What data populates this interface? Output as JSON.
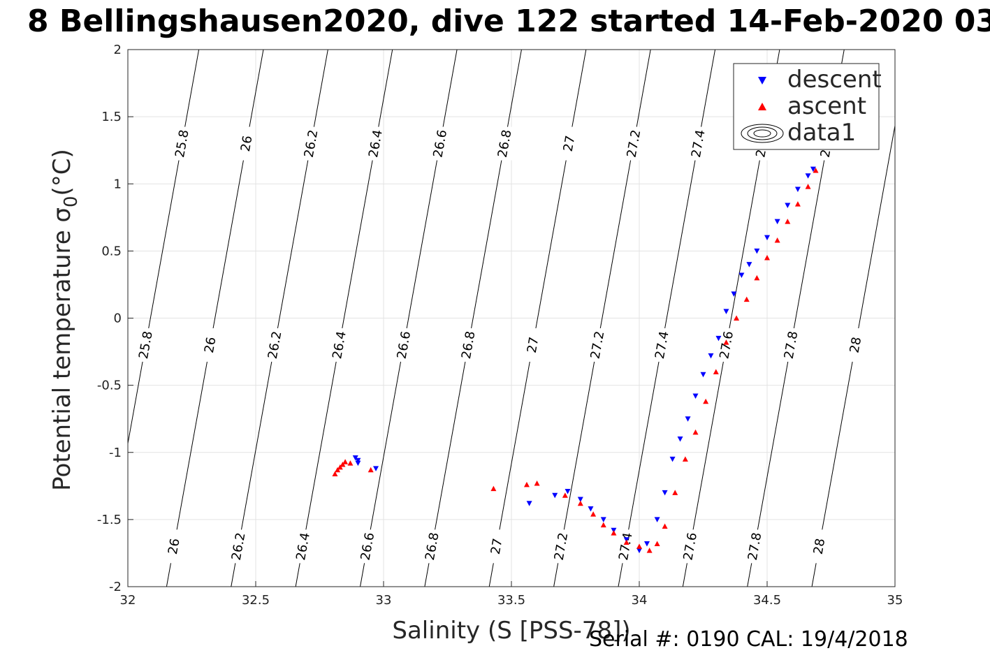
{
  "title": "8 Bellingshausen2020, dive 122 started 14-Feb-2020 03",
  "footer": "Serial #: 0190  CAL: 19/4/2018",
  "chart_data": {
    "type": "scatter",
    "xlabel": "Salinity (S [PSS-78])",
    "ylabel": "Potential temperature σ",
    "ylabel_subscript": "0",
    "ylabel_unit": "(°C)",
    "xlim": [
      32,
      35
    ],
    "ylim": [
      -2,
      2
    ],
    "x_ticks": [
      32,
      32.5,
      33,
      33.5,
      34,
      34.5,
      35
    ],
    "x_tick_labels": [
      "32",
      "32.5",
      "33",
      "33.5",
      "34",
      "34.5",
      "35"
    ],
    "y_ticks": [
      -2,
      -1.5,
      -1,
      -0.5,
      0,
      0.5,
      1,
      1.5,
      2
    ],
    "y_tick_labels": [
      "-2",
      "-1.5",
      "-1",
      "-0.5",
      "0",
      "0.5",
      "1",
      "1.5",
      "2"
    ],
    "grid": true,
    "legend_position": "top-right",
    "contour_levels": [
      "25.8",
      "26",
      "26.2",
      "26.4",
      "26.6",
      "26.8",
      "27",
      "27.2",
      "27.4",
      "27.6",
      "27.8",
      "28"
    ],
    "series": [
      {
        "name": "descent",
        "marker": "triangle-down",
        "color": "#0000ff",
        "x": [
          32.89,
          32.9,
          32.9,
          32.97,
          33.57,
          33.67,
          33.72,
          33.77,
          33.81,
          33.86,
          33.9,
          33.95,
          34.0,
          34.03,
          34.07,
          34.1,
          34.13,
          34.16,
          34.19,
          34.22,
          34.25,
          34.28,
          34.31,
          34.34,
          34.37,
          34.4,
          34.43,
          34.46,
          34.5,
          34.54,
          34.58,
          34.62,
          34.66,
          34.68
        ],
        "y": [
          -1.04,
          -1.06,
          -1.08,
          -1.12,
          -1.38,
          -1.32,
          -1.29,
          -1.35,
          -1.42,
          -1.5,
          -1.58,
          -1.65,
          -1.73,
          -1.68,
          -1.5,
          -1.3,
          -1.05,
          -0.9,
          -0.75,
          -0.58,
          -0.42,
          -0.28,
          -0.15,
          0.05,
          0.18,
          0.32,
          0.4,
          0.5,
          0.6,
          0.72,
          0.84,
          0.96,
          1.06,
          1.11
        ]
      },
      {
        "name": "ascent",
        "marker": "triangle-up",
        "color": "#ff0000",
        "x": [
          32.81,
          32.82,
          32.83,
          32.84,
          32.85,
          32.87,
          32.95,
          33.43,
          33.56,
          33.6,
          33.71,
          33.77,
          33.82,
          33.86,
          33.9,
          33.95,
          34.0,
          34.04,
          34.07,
          34.1,
          34.14,
          34.18,
          34.22,
          34.26,
          34.3,
          34.34,
          34.38,
          34.42,
          34.46,
          34.5,
          34.54,
          34.58,
          34.62,
          34.66,
          34.69
        ],
        "y": [
          -1.16,
          -1.13,
          -1.11,
          -1.09,
          -1.07,
          -1.08,
          -1.13,
          -1.27,
          -1.24,
          -1.23,
          -1.32,
          -1.38,
          -1.46,
          -1.54,
          -1.6,
          -1.67,
          -1.7,
          -1.73,
          -1.68,
          -1.55,
          -1.3,
          -1.05,
          -0.85,
          -0.62,
          -0.4,
          -0.18,
          0.0,
          0.14,
          0.3,
          0.45,
          0.58,
          0.72,
          0.85,
          0.98,
          1.1
        ]
      }
    ],
    "contour_legend_entry": "data1"
  }
}
